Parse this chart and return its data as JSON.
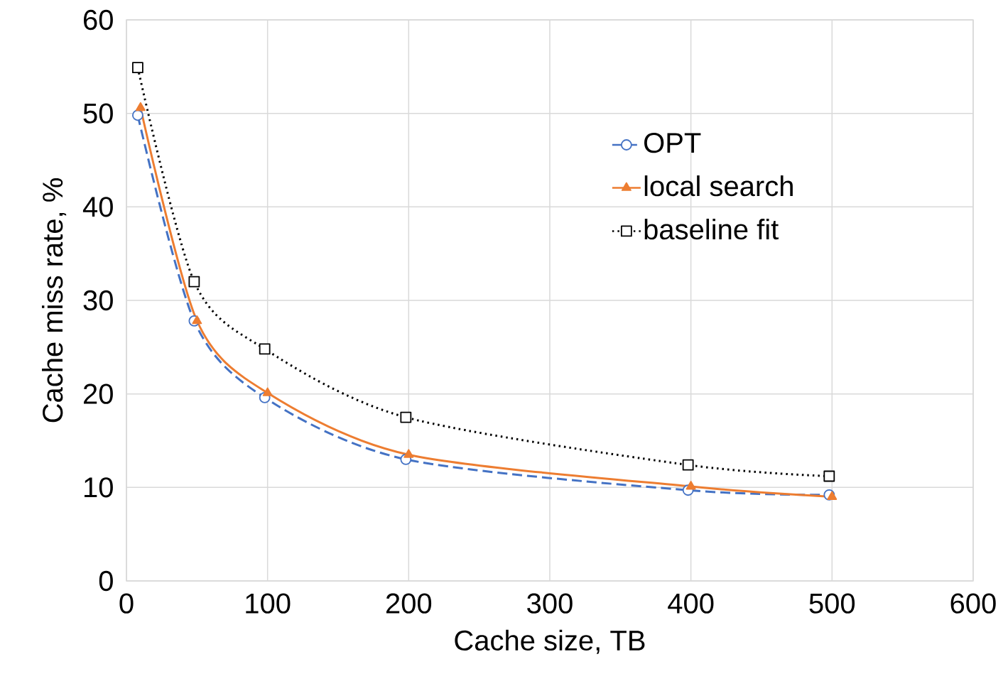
{
  "chart_data": {
    "type": "line",
    "xlabel": "Cache size,  TB",
    "ylabel": "Cache miss rate, %",
    "xlim": [
      0,
      600
    ],
    "xticks": [
      0,
      100,
      200,
      300,
      400,
      500,
      600
    ],
    "ylim": [
      0,
      60
    ],
    "yticks": [
      0,
      10,
      20,
      30,
      40,
      50,
      60
    ],
    "grid": true,
    "legend": "right",
    "series": [
      {
        "name": "OPT",
        "color": "#4472c4",
        "marker": "circle",
        "line_style": "dashed",
        "x": [
          8,
          48,
          98,
          198,
          398,
          498
        ],
        "values": [
          49.8,
          27.8,
          19.6,
          13.0,
          9.7,
          9.2
        ]
      },
      {
        "name": "local search",
        "color": "#ed7d31",
        "marker": "triangle",
        "line_style": "solid",
        "x": [
          10,
          50,
          100,
          200,
          400,
          500
        ],
        "values": [
          50.6,
          27.8,
          20.1,
          13.5,
          10.1,
          9.0
        ]
      },
      {
        "name": "baseline fit",
        "color": "#000000",
        "marker": "square",
        "line_style": "dotted",
        "x": [
          8,
          48,
          98,
          198,
          398,
          498
        ],
        "values": [
          54.9,
          32.0,
          24.8,
          17.5,
          12.4,
          11.2
        ]
      }
    ]
  }
}
